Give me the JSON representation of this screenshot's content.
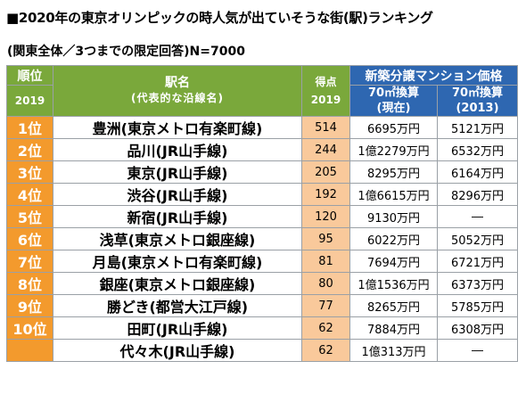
{
  "title": "■2020年の東京オリンピックの時人気が出ていそうな街(駅)ランキング",
  "subtitle": "(関東全体／3つまでの限定回答)N=7000",
  "header": {
    "rank_label": "順位",
    "rank_year": "2019",
    "name_label": "駅名",
    "name_sub": "(代表的な沿線名)",
    "score_label": "得点",
    "score_year": "2019",
    "price_group": "新築分譲マンション価格",
    "price_current_line1": "70㎡換算",
    "price_current_line2": "(現在)",
    "price_2013_line1": "70㎡換算",
    "price_2013_line2": "(2013)"
  },
  "rows": [
    {
      "rank": "1位",
      "name": "豊洲(東京メトロ有楽町線)",
      "score": "514",
      "price_now": "6695万円",
      "price_2013": "5121万円"
    },
    {
      "rank": "2位",
      "name": "品川(JR山手線)",
      "score": "244",
      "price_now": "1億2279万円",
      "price_2013": "6532万円"
    },
    {
      "rank": "3位",
      "name": "東京(JR山手線)",
      "score": "205",
      "price_now": "8295万円",
      "price_2013": "6164万円"
    },
    {
      "rank": "4位",
      "name": "渋谷(JR山手線)",
      "score": "192",
      "price_now": "1億6615万円",
      "price_2013": "8296万円"
    },
    {
      "rank": "5位",
      "name": "新宿(JR山手線)",
      "score": "120",
      "price_now": "9130万円",
      "price_2013": "―"
    },
    {
      "rank": "6位",
      "name": "浅草(東京メトロ銀座線)",
      "score": "95",
      "price_now": "6022万円",
      "price_2013": "5052万円"
    },
    {
      "rank": "7位",
      "name": "月島(東京メトロ有楽町線)",
      "score": "81",
      "price_now": "7694万円",
      "price_2013": "6721万円"
    },
    {
      "rank": "8位",
      "name": "銀座(東京メトロ銀座線)",
      "score": "80",
      "price_now": "1億1536万円",
      "price_2013": "6373万円"
    },
    {
      "rank": "9位",
      "name": "勝どき(都営大江戸線)",
      "score": "77",
      "price_now": "8265万円",
      "price_2013": "5785万円"
    },
    {
      "rank": "10位",
      "name": "田町(JR山手線)",
      "score": "62",
      "price_now": "7884万円",
      "price_2013": "6308万円"
    },
    {
      "rank": "",
      "name": "代々木(JR山手線)",
      "score": "62",
      "price_now": "1億313万円",
      "price_2013": "―"
    }
  ],
  "colors": {
    "header_green": "#7aa83b",
    "header_blue": "#2e67b1",
    "rank_orange": "#f39a2d",
    "score_peach": "#f9c99b"
  }
}
